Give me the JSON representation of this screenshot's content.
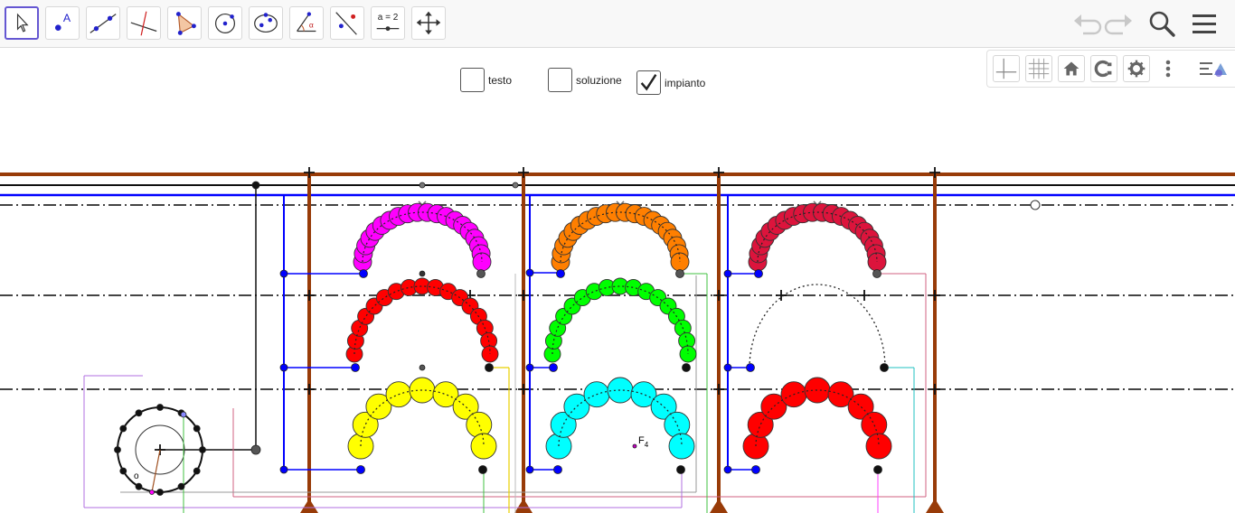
{
  "toolbar": {
    "tools": [
      {
        "name": "move-tool",
        "icon": "cursor-arrow-icon",
        "active": true
      },
      {
        "name": "point-tool",
        "icon": "point-icon"
      },
      {
        "name": "line-tool",
        "icon": "line-through-points-icon"
      },
      {
        "name": "perpendicular-line-tool",
        "icon": "perpendicular-line-icon"
      },
      {
        "name": "polygon-tool",
        "icon": "polygon-icon"
      },
      {
        "name": "circle-tool",
        "icon": "circle-center-point-icon"
      },
      {
        "name": "conic-tool",
        "icon": "ellipse-icon"
      },
      {
        "name": "angle-tool",
        "icon": "angle-icon"
      },
      {
        "name": "reflect-tool",
        "icon": "reflect-point-icon"
      },
      {
        "name": "slider-tool",
        "icon": "slider-icon",
        "label": "a = 2"
      },
      {
        "name": "move-graphics-tool",
        "icon": "move-arrows-icon"
      }
    ],
    "right": [
      "undo-icon",
      "redo-icon",
      "search-icon",
      "menu-icon"
    ]
  },
  "graphics_panel": {
    "buttons": [
      "axes-icon",
      "grid-icon",
      "home-icon",
      "point-capture-icon",
      "settings-icon",
      "more-vertical-icon",
      "style-bar-toggle-icon"
    ]
  },
  "checkboxes": [
    {
      "label": "testo",
      "checked": false
    },
    {
      "label": "soluzione",
      "checked": false
    },
    {
      "label": "impianto",
      "checked": true
    }
  ],
  "colors": {
    "accent": "#6557d2",
    "brown": "#983b08",
    "blue": "#0000ff",
    "magenta": "#ff00ff",
    "orange": "#ff7f00",
    "crimson": "#dc143c",
    "red": "#ff0000",
    "green": "#00ff00",
    "yellow": "#ffff00",
    "cyan": "#00ffff"
  },
  "labels": {
    "point_f": "F",
    "point_f_sub": "4",
    "point_o": "o"
  }
}
